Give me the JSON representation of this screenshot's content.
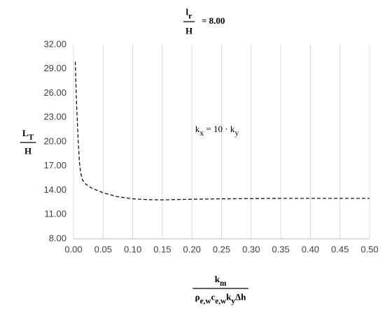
{
  "chart_data": {
    "type": "line",
    "title": {
      "numerator": [
        {
          "text": "l",
          "sub": "r"
        }
      ],
      "denominator": [
        {
          "text": "H"
        }
      ],
      "rhs": "= 8.00"
    },
    "y_label": {
      "numerator": [
        {
          "text": "L",
          "sub": "T"
        }
      ],
      "denominator": [
        {
          "text": "H"
        }
      ]
    },
    "x_label": {
      "numerator": [
        {
          "text": "k",
          "sub": "m"
        }
      ],
      "denominator": [
        {
          "text": "ρ",
          "sub": "e,w"
        },
        {
          "text": "c",
          "sub": "e,w"
        },
        {
          "text": "k",
          "sub": "y"
        },
        {
          "text": "Δh"
        }
      ]
    },
    "annotation": [
      {
        "text": "k",
        "sub": "x"
      },
      {
        "text": " = 10 · k",
        "sub": "y"
      }
    ],
    "x": [
      0.003,
      0.005,
      0.008,
      0.01,
      0.012,
      0.015,
      0.02,
      0.03,
      0.05,
      0.075,
      0.1,
      0.125,
      0.15,
      0.2,
      0.25,
      0.3,
      0.35,
      0.4,
      0.45,
      0.5
    ],
    "values": [
      29.9,
      25,
      20,
      17.5,
      16.2,
      15.3,
      14.8,
      14.3,
      13.7,
      13.2,
      12.95,
      12.85,
      12.82,
      12.9,
      12.95,
      12.98,
      13,
      13,
      13,
      13
    ],
    "color": "#000000",
    "line_style": "dashed",
    "xlim": [
      0,
      0.5
    ],
    "ylim": [
      8,
      32
    ],
    "xticks": [
      {
        "value": 0,
        "label": "0.00"
      },
      {
        "value": 0.05,
        "label": "0.05"
      },
      {
        "value": 0.1,
        "label": "0.10"
      },
      {
        "value": 0.15,
        "label": "0.15"
      },
      {
        "value": 0.2,
        "label": "0.20"
      },
      {
        "value": 0.25,
        "label": "0.25"
      },
      {
        "value": 0.3,
        "label": "0.30"
      },
      {
        "value": 0.35,
        "label": "0.35"
      },
      {
        "value": 0.4,
        "label": "0.40"
      },
      {
        "value": 0.45,
        "label": "0.45"
      },
      {
        "value": 0.5,
        "label": "0.50"
      }
    ],
    "yticks": [
      {
        "value": 8,
        "label": "8.00"
      },
      {
        "value": 11,
        "label": "11.00"
      },
      {
        "value": 14,
        "label": "14.00"
      },
      {
        "value": 17,
        "label": "17.00"
      },
      {
        "value": 20,
        "label": "20.00"
      },
      {
        "value": 23,
        "label": "23.00"
      },
      {
        "value": 26,
        "label": "26.00"
      },
      {
        "value": 29,
        "label": "29.00"
      },
      {
        "value": 32,
        "label": "32.00"
      }
    ],
    "grid": "x"
  }
}
